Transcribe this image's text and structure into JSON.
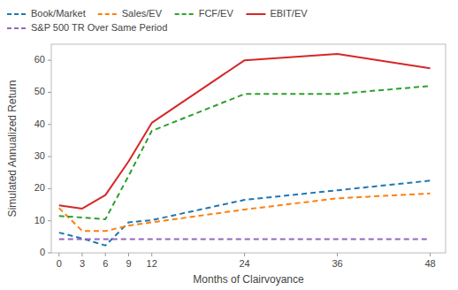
{
  "chart_data": {
    "type": "line",
    "xlabel": "Months of Clairvoyance",
    "ylabel": "Simulated Annualized Return",
    "x": [
      0,
      3,
      6,
      9,
      12,
      24,
      36,
      48
    ],
    "series": [
      {
        "name": "Book/Market",
        "color": "#1f77b4",
        "line_style": "dashed",
        "values": [
          6.3,
          4.5,
          2.3,
          9.5,
          10.2,
          16.5,
          19.5,
          22.5
        ]
      },
      {
        "name": "Sales/EV",
        "color": "#ff7f0e",
        "line_style": "dashed",
        "values": [
          14.0,
          6.8,
          6.8,
          8.5,
          9.5,
          13.5,
          17.0,
          18.5
        ]
      },
      {
        "name": "FCF/EV",
        "color": "#2ca02c",
        "line_style": "dashed",
        "values": [
          11.5,
          11.0,
          10.5,
          24.0,
          38.0,
          49.5,
          49.5,
          52.0
        ]
      },
      {
        "name": "EBIT/EV",
        "color": "#d62728",
        "line_style": "solid",
        "values": [
          14.8,
          13.8,
          18.0,
          28.5,
          40.5,
          60.0,
          62.0,
          57.5
        ]
      },
      {
        "name": "S&P 500 TR Over Same Period",
        "color": "#9467bd",
        "line_style": "dashed",
        "values": [
          4.3,
          4.3,
          4.3,
          4.3,
          4.3,
          4.3,
          4.3,
          4.3
        ]
      }
    ],
    "xlim": [
      -1,
      50
    ],
    "ylim": [
      0,
      65
    ],
    "xticks": [
      0,
      3,
      6,
      9,
      12,
      24,
      36,
      48
    ],
    "yticks": [
      0,
      10,
      20,
      30,
      40,
      50,
      60
    ],
    "legend": "upper left",
    "grid": false
  }
}
